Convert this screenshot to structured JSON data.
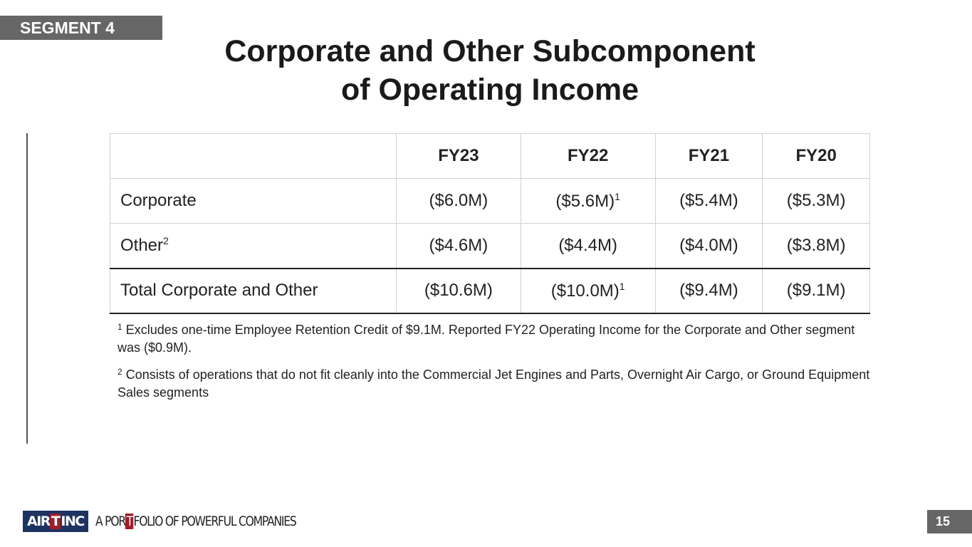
{
  "segment_label": "SEGMENT 4",
  "title_line1": "Corporate and Other Subcomponent",
  "title_line2": "of Operating Income",
  "table": {
    "headers": [
      "",
      "FY23",
      "FY22",
      "FY21",
      "FY20"
    ],
    "rows": [
      {
        "label": "Corporate",
        "label_sup": "",
        "values": [
          "($6.0M)",
          "($5.6M)",
          "($5.4M)",
          "($5.3M)"
        ],
        "sups": [
          "",
          "1",
          "",
          ""
        ]
      },
      {
        "label": "Other",
        "label_sup": "2",
        "values": [
          "($4.6M)",
          "($4.4M)",
          "($4.0M)",
          "($3.8M)"
        ],
        "sups": [
          "",
          "",
          "",
          ""
        ]
      },
      {
        "label": "Total Corporate and Other",
        "label_sup": "",
        "values": [
          "($10.6M)",
          "($10.0M)",
          "($9.4M)",
          "($9.1M)"
        ],
        "sups": [
          "",
          "1",
          "",
          ""
        ]
      }
    ]
  },
  "footnotes": [
    {
      "mark": "1",
      "text": " Excludes one-time Employee Retention Credit of $9.1M. Reported FY22 Operating Income for the Corporate and Other segment was ($0.9M)."
    },
    {
      "mark": "2",
      "text": " Consists of operations that do not fit cleanly into the Commercial Jet Engines and Parts, Overnight Air Cargo, or Ground Equipment Sales segments"
    }
  ],
  "logo": {
    "air": "AIR",
    "t": "T",
    "inc": "INC",
    "tag_a": "A POR",
    "tag_t": "T",
    "tag_b": "FOLIO OF POWERFUL COMPANIES"
  },
  "page_number": "15"
}
